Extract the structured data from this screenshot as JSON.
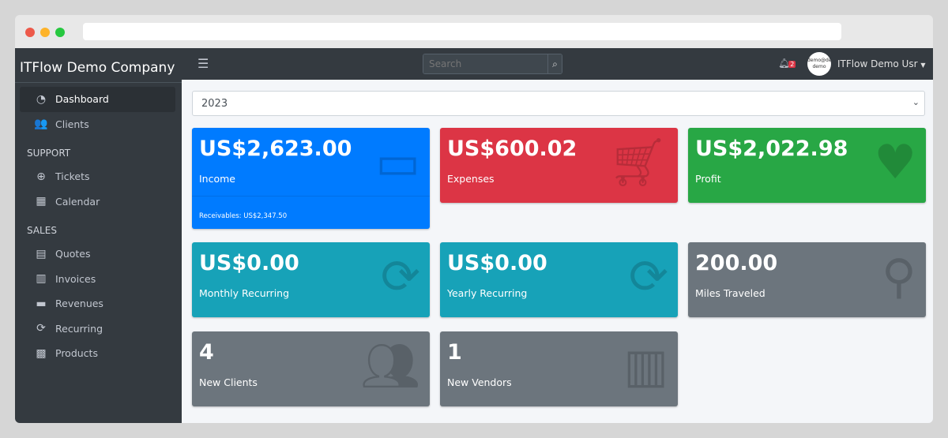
{
  "browser": {
    "dots": [
      "#ed594a",
      "#fdb32a",
      "#27c840"
    ]
  },
  "sidebar": {
    "brand": "ITFlow Demo Company",
    "items": [
      {
        "label": "Dashboard",
        "icon": "tachometer-icon"
      },
      {
        "label": "Clients",
        "icon": "users-icon"
      }
    ],
    "support_header": "SUPPORT",
    "support": [
      {
        "label": "Tickets",
        "icon": "life-ring-icon"
      },
      {
        "label": "Calendar",
        "icon": "calendar-icon"
      }
    ],
    "sales_header": "SALES",
    "sales": [
      {
        "label": "Quotes",
        "icon": "file-icon"
      },
      {
        "label": "Invoices",
        "icon": "invoice-icon"
      },
      {
        "label": "Revenues",
        "icon": "credit-card-icon"
      },
      {
        "label": "Recurring",
        "icon": "sync-icon"
      },
      {
        "label": "Products",
        "icon": "box-icon"
      }
    ]
  },
  "topbar": {
    "search_placeholder": "Search",
    "notifications": "2",
    "avatar_text": "demo@demo demo",
    "user": "ITFlow Demo Usr"
  },
  "year": "2023",
  "cards": [
    {
      "value": "US$2,623.00",
      "label": "Income",
      "footer": "Receivables: US$2,347.50",
      "color": "#007bff"
    },
    {
      "value": "US$600.02",
      "label": "Expenses",
      "color": "#dc3545"
    },
    {
      "value": "US$2,022.98",
      "label": "Profit",
      "color": "#28a745"
    },
    {
      "value": "US$0.00",
      "label": "Monthly Recurring",
      "color": "#17a2b8"
    },
    {
      "value": "US$0.00",
      "label": "Yearly Recurring",
      "color": "#17a2b8"
    },
    {
      "value": "200.00",
      "label": "Miles Traveled",
      "color": "#6c757d"
    },
    {
      "value": "4",
      "label": "New Clients",
      "color": "#6c757d"
    },
    {
      "value": "1",
      "label": "New Vendors",
      "color": "#6c757d"
    }
  ]
}
